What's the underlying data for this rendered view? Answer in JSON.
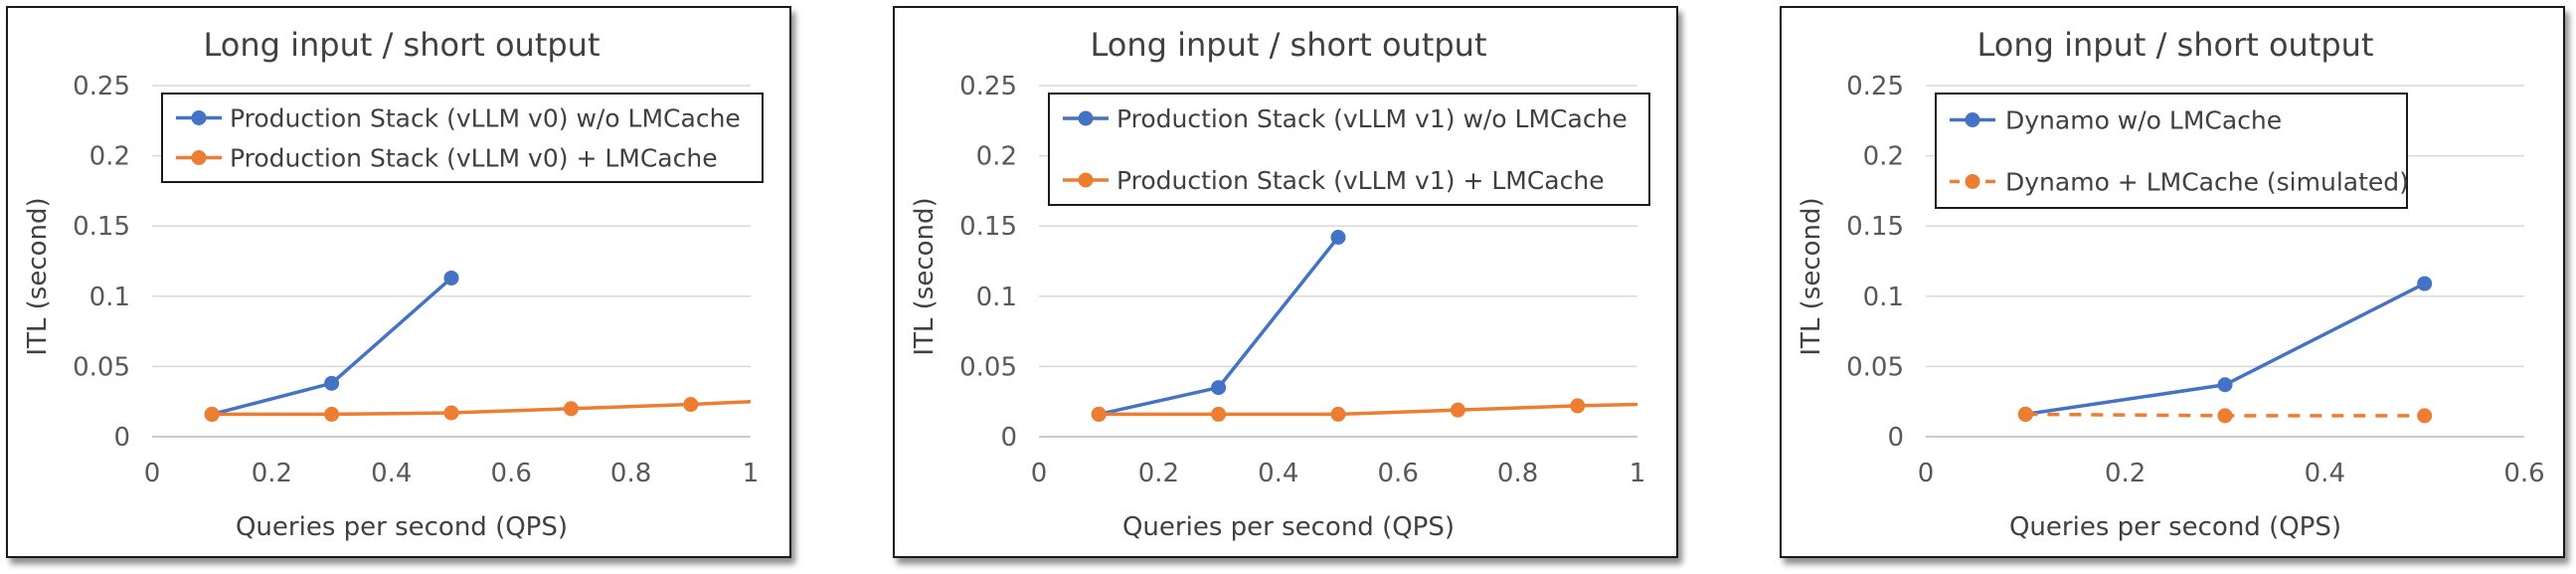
{
  "chart_data": [
    {
      "type": "line",
      "title": "Long input / short output",
      "xlabel": "Queries per second (QPS)",
      "ylabel": "ITL (second)",
      "xlim": [
        0,
        1
      ],
      "ylim": [
        0,
        0.25
      ],
      "xticks": [
        "0",
        "0.2",
        "0.4",
        "0.6",
        "0.8",
        "1"
      ],
      "yticks": [
        "0",
        "0.05",
        "0.1",
        "0.15",
        "0.2",
        "0.25"
      ],
      "legend_position": "top",
      "grid": "horizontal",
      "series": [
        {
          "name": "Production Stack (vLLM v0) w/o LMCache",
          "color": "#4472C4",
          "style": "solid",
          "x": [
            0.1,
            0.3,
            0.5
          ],
          "y": [
            0.016,
            0.038,
            0.113
          ]
        },
        {
          "name": "Production Stack (vLLM v0) + LMCache",
          "color": "#ED7D31",
          "style": "solid",
          "x": [
            0.1,
            0.3,
            0.5,
            0.7,
            0.9
          ],
          "y": [
            0.016,
            0.016,
            0.017,
            0.02,
            0.023
          ],
          "extend_to": [
            1.0,
            0.025
          ]
        }
      ]
    },
    {
      "type": "line",
      "title": "Long input / short output",
      "xlabel": "Queries per second (QPS)",
      "ylabel": "ITL (second)",
      "xlim": [
        0,
        1
      ],
      "ylim": [
        0,
        0.25
      ],
      "xticks": [
        "0",
        "0.2",
        "0.4",
        "0.6",
        "0.8",
        "1"
      ],
      "yticks": [
        "0",
        "0.05",
        "0.1",
        "0.15",
        "0.2",
        "0.25"
      ],
      "legend_position": "top",
      "grid": "horizontal",
      "series": [
        {
          "name": "Production Stack (vLLM v1) w/o LMCache",
          "color": "#4472C4",
          "style": "solid",
          "x": [
            0.1,
            0.3,
            0.5
          ],
          "y": [
            0.016,
            0.035,
            0.142
          ]
        },
        {
          "name": "Production Stack (vLLM v1) + LMCache",
          "color": "#ED7D31",
          "style": "solid",
          "x": [
            0.1,
            0.3,
            0.5,
            0.7,
            0.9
          ],
          "y": [
            0.016,
            0.016,
            0.016,
            0.019,
            0.022
          ],
          "extend_to": [
            1.0,
            0.023
          ]
        }
      ]
    },
    {
      "type": "line",
      "title": "Long input / short output",
      "xlabel": "Queries per second (QPS)",
      "ylabel": "ITL (second)",
      "xlim": [
        0,
        0.6
      ],
      "ylim": [
        0,
        0.25
      ],
      "xticks": [
        "0",
        "0.2",
        "0.4",
        "0.6"
      ],
      "yticks": [
        "0",
        "0.05",
        "0.1",
        "0.15",
        "0.2",
        "0.25"
      ],
      "legend_position": "top",
      "grid": "horizontal",
      "series": [
        {
          "name": "Dynamo w/o LMCache",
          "color": "#4472C4",
          "style": "solid",
          "x": [
            0.1,
            0.3,
            0.5
          ],
          "y": [
            0.016,
            0.037,
            0.109
          ]
        },
        {
          "name": "Dynamo + LMCache (simulated)",
          "color": "#ED7D31",
          "style": "dashed",
          "x": [
            0.1,
            0.3,
            0.5
          ],
          "y": [
            0.016,
            0.015,
            0.015
          ]
        }
      ]
    }
  ]
}
